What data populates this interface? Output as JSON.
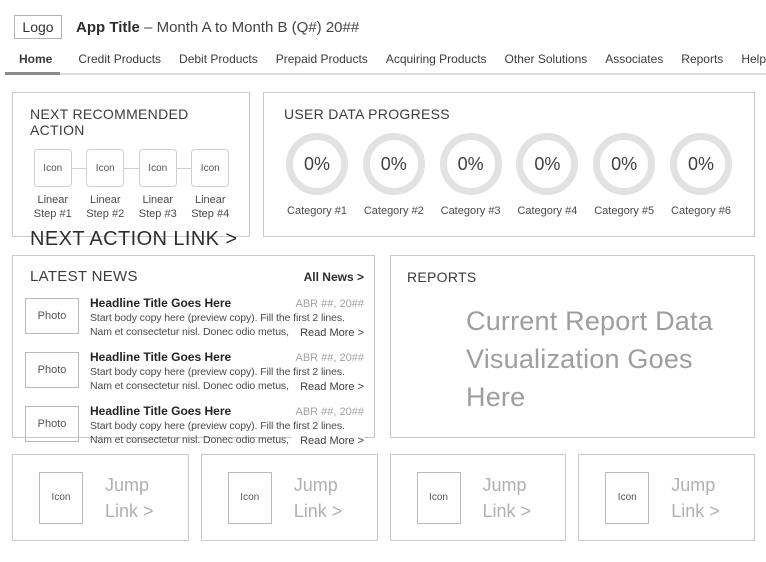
{
  "header": {
    "logo": "Logo",
    "title": "App Title",
    "subtitle": "– Month A to Month B (Q#) 20##"
  },
  "nav": {
    "items": [
      {
        "label": "Home",
        "active": true
      },
      {
        "label": "Credit Products",
        "active": false
      },
      {
        "label": "Debit Products",
        "active": false
      },
      {
        "label": "Prepaid Products",
        "active": false
      },
      {
        "label": "Acquiring Products",
        "active": false
      },
      {
        "label": "Other Solutions",
        "active": false
      },
      {
        "label": "Associates",
        "active": false
      },
      {
        "label": "Reports",
        "active": false
      },
      {
        "label": "Help",
        "active": false
      }
    ]
  },
  "next_action": {
    "title": "NEXT RECOMMENDED ACTION",
    "steps": [
      {
        "icon": "Icon",
        "label": "Linear Step #1"
      },
      {
        "icon": "Icon",
        "label": "Linear Step #2"
      },
      {
        "icon": "Icon",
        "label": "Linear Step #3"
      },
      {
        "icon": "Icon",
        "label": "Linear Step #4"
      }
    ],
    "link": "NEXT ACTION LINK >"
  },
  "progress": {
    "title": "USER DATA PROGRESS",
    "items": [
      {
        "value": "0%",
        "label": "Category #1"
      },
      {
        "value": "0%",
        "label": "Category #2"
      },
      {
        "value": "0%",
        "label": "Category #3"
      },
      {
        "value": "0%",
        "label": "Category #4"
      },
      {
        "value": "0%",
        "label": "Category #5"
      },
      {
        "value": "0%",
        "label": "Category #6"
      }
    ]
  },
  "news": {
    "title": "LATEST NEWS",
    "all_link": "All News >",
    "items": [
      {
        "photo": "Photo",
        "headline": "Headline Title Goes Here",
        "date": "ABR ##, 20##",
        "body": "Start body copy here (preview copy). Fill the first 2 lines. Nam et consectetur nisl. Donec odio metus, molestie...",
        "read_more": "Read More >"
      },
      {
        "photo": "Photo",
        "headline": "Headline Title Goes Here",
        "date": "ABR ##, 20##",
        "body": "Start body copy here (preview copy). Fill the first 2 lines. Nam et consectetur nisl. Donec odio metus, molestie...",
        "read_more": "Read More >"
      },
      {
        "photo": "Photo",
        "headline": "Headline Title Goes Here",
        "date": "ABR ##, 20##",
        "body": "Start body copy here (preview copy). Fill the first 2 lines. Nam et consectetur nisl. Donec odio metus, molestie...",
        "read_more": "Read More >"
      }
    ]
  },
  "reports": {
    "title": "REPORTS",
    "placeholder": "Current Report Data Visualization Goes Here"
  },
  "jump_links": {
    "items": [
      {
        "icon": "Icon",
        "label": "Jump Link >"
      },
      {
        "icon": "Icon",
        "label": "Jump Link >"
      },
      {
        "icon": "Icon",
        "label": "Jump Link >"
      },
      {
        "icon": "Icon",
        "label": "Jump Link >"
      }
    ]
  },
  "colors": {
    "panel_border": "#c9c9c9",
    "active_tab_underline": "#8a8a8a",
    "progress_ring": "#e2e2e2",
    "placeholder_text": "#9e9e9e",
    "jump_link_text": "#b0b0b0"
  }
}
